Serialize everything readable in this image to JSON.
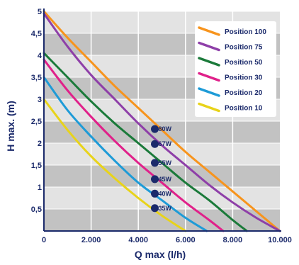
{
  "chart_data": {
    "type": "line",
    "xlabel": "Q max (l/h)",
    "ylabel": "H max. (m)",
    "xlim": [
      0,
      10000
    ],
    "ylim": [
      0,
      5
    ],
    "x_ticks": [
      {
        "value": 0,
        "label": "0"
      },
      {
        "value": 2000,
        "label": "2.000"
      },
      {
        "value": 4000,
        "label": "4.000"
      },
      {
        "value": 6000,
        "label": "6.000"
      },
      {
        "value": 8000,
        "label": "8.000"
      },
      {
        "value": 10000,
        "label": "10.000"
      }
    ],
    "y_ticks": [
      {
        "value": 0.5,
        "label": "0,5"
      },
      {
        "value": 1,
        "label": "1"
      },
      {
        "value": 1.5,
        "label": "1,5"
      },
      {
        "value": 2,
        "label": "2"
      },
      {
        "value": 2.5,
        "label": "2,5"
      },
      {
        "value": 3,
        "label": "3"
      },
      {
        "value": 3.5,
        "label": "3,5"
      },
      {
        "value": 4,
        "label": "4"
      },
      {
        "value": 4.5,
        "label": "4,5"
      },
      {
        "value": 5,
        "label": "5"
      }
    ],
    "grid": true,
    "legend_position": "top-right",
    "series": [
      {
        "name": "Position 100",
        "color": "#f7941d",
        "x": [
          0,
          1000,
          2000,
          3000,
          4000,
          5000,
          6000,
          7000,
          8000,
          9000,
          10000
        ],
        "y": [
          5.0,
          4.4,
          3.85,
          3.3,
          2.8,
          2.3,
          1.8,
          1.35,
          0.9,
          0.45,
          0.0
        ]
      },
      {
        "name": "Position 75",
        "color": "#8e3fa8",
        "x": [
          0,
          1000,
          2000,
          3000,
          4000,
          5000,
          6000,
          7000,
          8000,
          9000,
          10000
        ],
        "y": [
          4.95,
          4.2,
          3.55,
          3.0,
          2.45,
          1.95,
          1.5,
          1.05,
          0.65,
          0.3,
          0.0
        ]
      },
      {
        "name": "Position 50",
        "color": "#1b7a3a",
        "x": [
          0,
          1000,
          2000,
          3000,
          4000,
          5000,
          6000,
          7000,
          8000,
          8600
        ],
        "y": [
          4.05,
          3.5,
          2.95,
          2.45,
          2.0,
          1.55,
          1.1,
          0.7,
          0.25,
          0.0
        ]
      },
      {
        "name": "Position 30",
        "color": "#e0218a",
        "x": [
          0,
          1000,
          2000,
          3000,
          4000,
          5000,
          6000,
          7000,
          7600
        ],
        "y": [
          3.9,
          3.2,
          2.6,
          2.05,
          1.55,
          1.1,
          0.65,
          0.25,
          0.0
        ]
      },
      {
        "name": "Position 20",
        "color": "#1e9bd7",
        "x": [
          0,
          1000,
          2000,
          3000,
          4000,
          5000,
          6000,
          6900
        ],
        "y": [
          3.5,
          2.75,
          2.15,
          1.6,
          1.1,
          0.7,
          0.3,
          0.0
        ]
      },
      {
        "name": "Position 10",
        "color": "#e8d31a",
        "x": [
          0,
          1000,
          2000,
          3000,
          4000,
          5000,
          6000
        ],
        "y": [
          3.0,
          2.3,
          1.7,
          1.2,
          0.75,
          0.35,
          0.0
        ]
      }
    ],
    "annotations": [
      {
        "label": "80W",
        "x": 4700,
        "y": 2.32
      },
      {
        "label": "67W",
        "x": 4700,
        "y": 1.98
      },
      {
        "label": "55W",
        "x": 4700,
        "y": 1.55
      },
      {
        "label": "45W",
        "x": 4700,
        "y": 1.18
      },
      {
        "label": "40W",
        "x": 4700,
        "y": 0.85
      },
      {
        "label": "35W",
        "x": 4700,
        "y": 0.52
      }
    ]
  },
  "colors": {
    "axis": "#1b2a6b",
    "band_dark": "#c2c2c2",
    "band_light": "#e3e3e3",
    "grid": "#ffffff",
    "marker": "#1b2a6b"
  }
}
